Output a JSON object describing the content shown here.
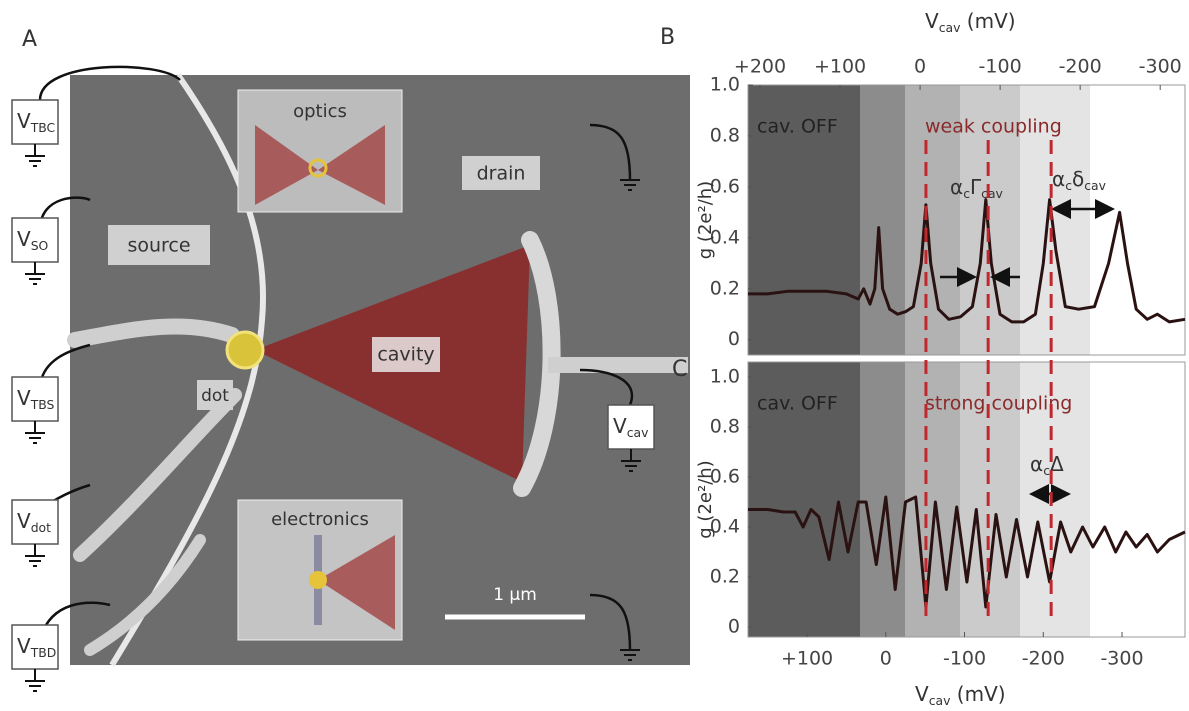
{
  "panel_a": {
    "letter": "A",
    "source": "source",
    "drain": "drain",
    "dot": "dot",
    "cavity": "cavity",
    "optics": "optics",
    "electronics": "electronics",
    "scale_bar": "1 µm",
    "gates": [
      {
        "symbol": "V",
        "sub": "TBC"
      },
      {
        "symbol": "V",
        "sub": "SO"
      },
      {
        "symbol": "V",
        "sub": "TBS"
      },
      {
        "symbol": "V",
        "sub": "dot"
      },
      {
        "symbol": "V",
        "sub": "TBD"
      },
      {
        "symbol": "V",
        "sub": "cav"
      }
    ]
  },
  "chart_data": [
    {
      "type": "line",
      "letter": "B",
      "x2_label": {
        "symbol": "V",
        "sub": "cav",
        "unit": " (mV)"
      },
      "y_label": "g (2e²/h)",
      "x2lim": [
        215,
        -331
      ],
      "x2ticks": [
        {
          "value": 200,
          "label": "+200"
        },
        {
          "value": 100,
          "label": "+100"
        },
        0,
        -100,
        -200,
        -300
      ],
      "xlim": [
        175,
        -380
      ],
      "ylim": [
        -0.06,
        1.0
      ],
      "yticks": [
        {
          "value": 1.0,
          "label": "1.0"
        },
        0.8,
        0.6,
        0.4,
        0.2,
        0
      ],
      "annotations": {
        "off": "cav. OFF",
        "regime": "weak coupling",
        "linewidth": [
          [
            "α",
            "c"
          ],
          [
            "Γ",
            "cav"
          ]
        ],
        "spacing": [
          [
            "α",
            "c"
          ],
          [
            "δ",
            "cav"
          ]
        ]
      },
      "color": "#2b1212",
      "x": [
        175,
        150,
        125,
        100,
        75,
        50,
        35,
        28,
        20,
        14,
        9,
        4,
        -5,
        -15,
        -25,
        -35,
        -45,
        -51,
        -57,
        -67,
        -80,
        -95,
        -110,
        -120,
        -127,
        -134,
        -145,
        -160,
        -175,
        -190,
        -200,
        -208,
        -216,
        -228,
        -245,
        -265,
        -283,
        -297,
        -307,
        -318,
        -332,
        -345,
        -360,
        -380
      ],
      "values": [
        0.18,
        0.18,
        0.19,
        0.19,
        0.19,
        0.18,
        0.16,
        0.2,
        0.14,
        0.2,
        0.44,
        0.2,
        0.12,
        0.1,
        0.11,
        0.13,
        0.3,
        0.53,
        0.3,
        0.12,
        0.08,
        0.09,
        0.13,
        0.3,
        0.55,
        0.3,
        0.1,
        0.07,
        0.07,
        0.1,
        0.3,
        0.55,
        0.35,
        0.13,
        0.12,
        0.13,
        0.3,
        0.5,
        0.3,
        0.12,
        0.08,
        0.1,
        0.07,
        0.08
      ]
    },
    {
      "type": "line",
      "letter": "C",
      "x_label": {
        "symbol": "V",
        "sub": "cav",
        "unit": " (mV)"
      },
      "y_label": "g (2e²/h)",
      "xlim": [
        175,
        -380
      ],
      "xticks": [
        {
          "value": 100,
          "label": "+100"
        },
        0,
        -100,
        -200,
        -300
      ],
      "ylim": [
        -0.04,
        1.06
      ],
      "yticks": [
        {
          "value": 1.0,
          "label": "1.0"
        },
        0.8,
        0.6,
        0.4,
        0.2,
        0
      ],
      "annotations": {
        "off": "cav. OFF",
        "regime": "strong coupling",
        "gap": [
          [
            "α",
            "c"
          ],
          [
            "Δ",
            ""
          ]
        ]
      },
      "vlines": {
        "values": [
          -51,
          -130,
          -210
        ],
        "color": "#c0282d"
      },
      "color": "#2b1212",
      "x": [
        175,
        150,
        130,
        115,
        105,
        95,
        85,
        72,
        60,
        48,
        35,
        25,
        12,
        0,
        -12,
        -25,
        -38,
        -51,
        -63,
        -77,
        -90,
        -103,
        -115,
        -127,
        -140,
        -153,
        -166,
        -180,
        -193,
        -208,
        -222,
        -235,
        -250,
        -263,
        -278,
        -292,
        -305,
        -318,
        -332,
        -345,
        -360,
        -380
      ],
      "values": [
        0.47,
        0.47,
        0.46,
        0.46,
        0.4,
        0.47,
        0.44,
        0.27,
        0.5,
        0.3,
        0.5,
        0.5,
        0.25,
        0.52,
        0.15,
        0.5,
        0.52,
        0.08,
        0.5,
        0.15,
        0.48,
        0.18,
        0.47,
        0.08,
        0.45,
        0.2,
        0.43,
        0.2,
        0.42,
        0.18,
        0.42,
        0.3,
        0.4,
        0.32,
        0.4,
        0.3,
        0.38,
        0.32,
        0.37,
        0.3,
        0.35,
        0.38
      ]
    }
  ]
}
